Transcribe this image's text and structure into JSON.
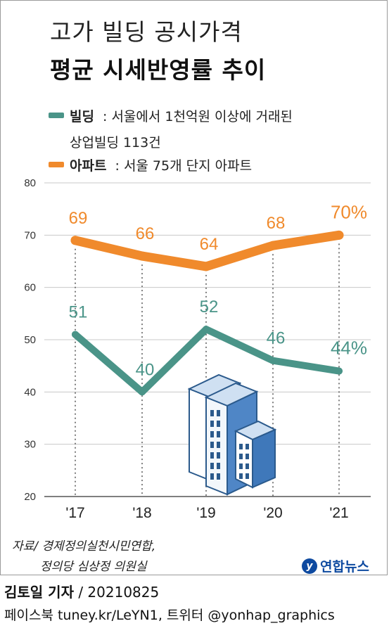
{
  "header": {
    "title_line1": "고가 빌딩 공시가격",
    "title_line2": "평균 시세반영률 추이"
  },
  "legend": [
    {
      "name": "빌딩",
      "sep": " : ",
      "desc_line1": "서울에서 1천억원 이상에 거래된",
      "desc_line2": "상업빌딩 113건",
      "color": "#4a9488"
    },
    {
      "name": "아파트",
      "sep": " : ",
      "desc_line1": "서울 75개 단지 아파트",
      "desc_line2": "",
      "color": "#f08a2c"
    }
  ],
  "chart_data": {
    "type": "line",
    "x": [
      "'17",
      "'18",
      "'19",
      "'20",
      "'21"
    ],
    "ylim": [
      20,
      80
    ],
    "yticks": [
      "20",
      "30",
      "40",
      "50",
      "60",
      "70",
      "80"
    ],
    "series": [
      {
        "name": "아파트",
        "values": [
          69,
          66,
          64,
          68,
          70
        ],
        "labels": [
          "69",
          "66",
          "64",
          "68",
          "70%"
        ],
        "color": "#f08a2c"
      },
      {
        "name": "빌딩",
        "values": [
          51,
          40,
          52,
          46,
          44
        ],
        "labels": [
          "51",
          "40",
          "52",
          "46",
          "44%"
        ],
        "color": "#4a9488"
      }
    ]
  },
  "source": {
    "line1": "자료/ 경제정의실천시민연합,",
    "line2": "정의당 심상정 의원실"
  },
  "logo": {
    "text": "연합뉴스",
    "glyph": "y"
  },
  "credit": {
    "reporter": "김토일 기자",
    "date": " / 20210825",
    "social": "페이스북 tuney.kr/LeYN1, 트위터 @yonhap_graphics"
  },
  "illustration": {
    "icon": "office-buildings-icon"
  }
}
